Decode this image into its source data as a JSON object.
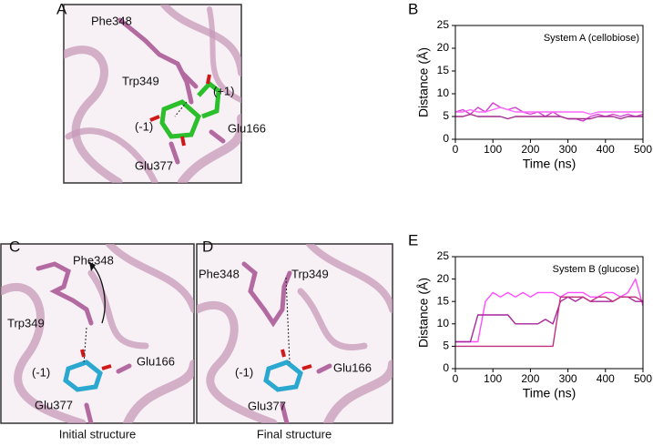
{
  "structures": [
    {
      "panel_label": "A",
      "labels": [
        "Phe348",
        "Trp349",
        "(+1)",
        "(-1)",
        "Glu166",
        "Glu377"
      ]
    },
    {
      "panel_label": "C",
      "labels": [
        "Phe348",
        "Trp349",
        "(-1)",
        "Glu166",
        "Glu377"
      ],
      "caption": "Initial structure"
    },
    {
      "panel_label": "D",
      "labels": [
        "Phe348",
        "Trp349",
        "(-1)",
        "Glu166",
        "Glu377"
      ],
      "caption": "Final structure"
    }
  ],
  "chart_data": [
    {
      "type": "line",
      "panel_label": "B",
      "legend_text": "System A (cellobiose)",
      "x_label": "Time (ns)",
      "y_label": "Distance (Å)",
      "x": [
        0,
        20,
        40,
        60,
        80,
        100,
        120,
        140,
        160,
        180,
        200,
        220,
        240,
        260,
        280,
        300,
        320,
        340,
        360,
        380,
        400,
        420,
        440,
        460,
        480,
        500
      ],
      "series": [
        {
          "color": "#d63fd6",
          "values": [
            6,
            6.5,
            5.5,
            7,
            6,
            8,
            7,
            6.5,
            7,
            6,
            5.5,
            6,
            5,
            6,
            5,
            4.5,
            4.5,
            4,
            5,
            5.5,
            5,
            5.5,
            5,
            5.5,
            5,
            5.5
          ]
        },
        {
          "color": "#a02a8c",
          "values": [
            5,
            5,
            5.5,
            5,
            5,
            5,
            5,
            4.5,
            5,
            5,
            5,
            5,
            5,
            5,
            5,
            4.5,
            4.5,
            4.5,
            4.5,
            5,
            5,
            5,
            4.5,
            5,
            5,
            5
          ]
        },
        {
          "color": "#ff66ff",
          "values": [
            6,
            6,
            6.5,
            6,
            6,
            6.5,
            7,
            6.5,
            6,
            6,
            6,
            6,
            6,
            6,
            6,
            6,
            6,
            6,
            5.5,
            6,
            6,
            6,
            6,
            6,
            6,
            6
          ]
        }
      ],
      "xlim": [
        0,
        500
      ],
      "xticks": [
        0,
        100,
        200,
        300,
        400,
        500
      ],
      "ylim": [
        0,
        25
      ],
      "yticks": [
        0,
        5,
        10,
        15,
        20,
        25
      ]
    },
    {
      "type": "line",
      "panel_label": "E",
      "legend_text": "System B (glucose)",
      "x_label": "Time (ns)",
      "y_label": "Distance (Å)",
      "x": [
        0,
        20,
        40,
        60,
        80,
        100,
        120,
        140,
        160,
        180,
        200,
        220,
        240,
        260,
        280,
        300,
        320,
        340,
        360,
        380,
        400,
        420,
        440,
        460,
        480,
        500
      ],
      "series": [
        {
          "color": "#ff4dff",
          "values": [
            6,
            6,
            6,
            6,
            15,
            17,
            16,
            17,
            16,
            17,
            16,
            17,
            17,
            17,
            16,
            17,
            17,
            17,
            16,
            16,
            17,
            17,
            16,
            17,
            20,
            14
          ]
        },
        {
          "color": "#a8249a",
          "values": [
            6,
            6,
            6,
            12,
            12,
            12,
            12,
            12,
            10,
            10,
            10,
            10,
            11,
            10,
            15,
            16,
            15,
            16,
            15,
            15,
            15,
            15,
            16,
            16,
            15,
            15
          ]
        },
        {
          "color": "#c0307e",
          "values": [
            5,
            5,
            5,
            5,
            5,
            5,
            5,
            5,
            5,
            5,
            5,
            5,
            5,
            5,
            16,
            16,
            16,
            16,
            15,
            16,
            16,
            15,
            16,
            16,
            16,
            15
          ]
        }
      ],
      "xlim": [
        0,
        500
      ],
      "xticks": [
        0,
        100,
        200,
        300,
        400,
        500
      ],
      "ylim": [
        0,
        25
      ],
      "yticks": [
        0,
        5,
        10,
        15,
        20,
        25
      ]
    }
  ]
}
